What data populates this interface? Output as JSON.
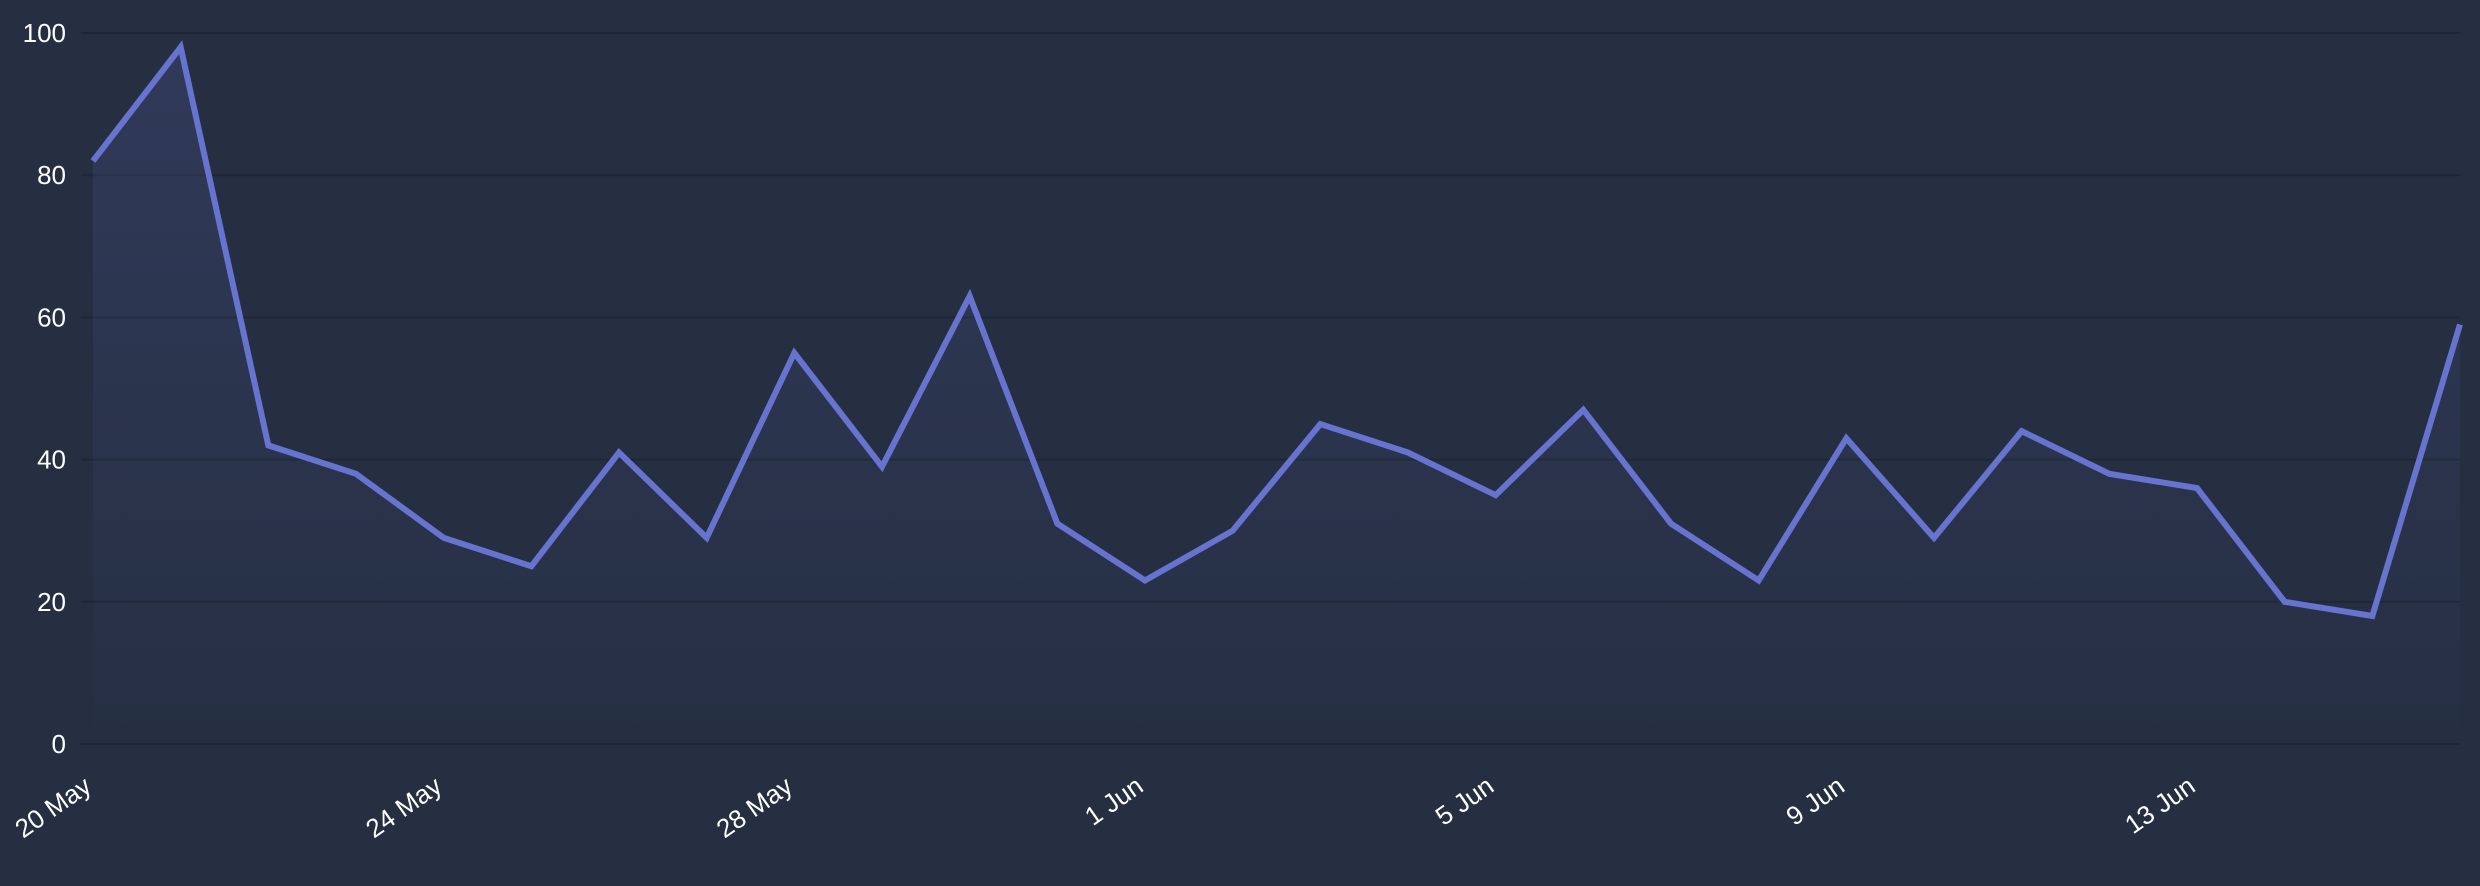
{
  "chart_data": {
    "type": "area",
    "x": [
      "20 May",
      "21 May",
      "22 May",
      "23 May",
      "24 May",
      "25 May",
      "26 May",
      "27 May",
      "28 May",
      "29 May",
      "30 May",
      "31 May",
      "1 Jun",
      "2 Jun",
      "3 Jun",
      "4 Jun",
      "5 Jun",
      "6 Jun",
      "7 Jun",
      "8 Jun",
      "9 Jun",
      "10 Jun",
      "11 Jun",
      "12 Jun",
      "13 Jun",
      "14 Jun",
      "15 Jun",
      "16 Jun"
    ],
    "series": [
      {
        "values": [
          82,
          98,
          42,
          38,
          29,
          25,
          41,
          29,
          55,
          39,
          63,
          31,
          23,
          30,
          45,
          41,
          35,
          47,
          31,
          23,
          43,
          29,
          44,
          38,
          36,
          20,
          18,
          59
        ]
      }
    ],
    "x_tick_labels": [
      "20 May",
      "24 May",
      "28 May",
      "1 Jun",
      "5 Jun",
      "9 Jun",
      "13 Jun"
    ],
    "y_tick_labels": [
      "0",
      "20",
      "40",
      "60",
      "80",
      "100"
    ],
    "ylim": [
      0,
      100
    ],
    "grid": true,
    "legend": "none",
    "colors": {
      "background": "#262f42",
      "line": "#6674d0",
      "grid": "#1f2636",
      "text": "#ffffff"
    }
  }
}
